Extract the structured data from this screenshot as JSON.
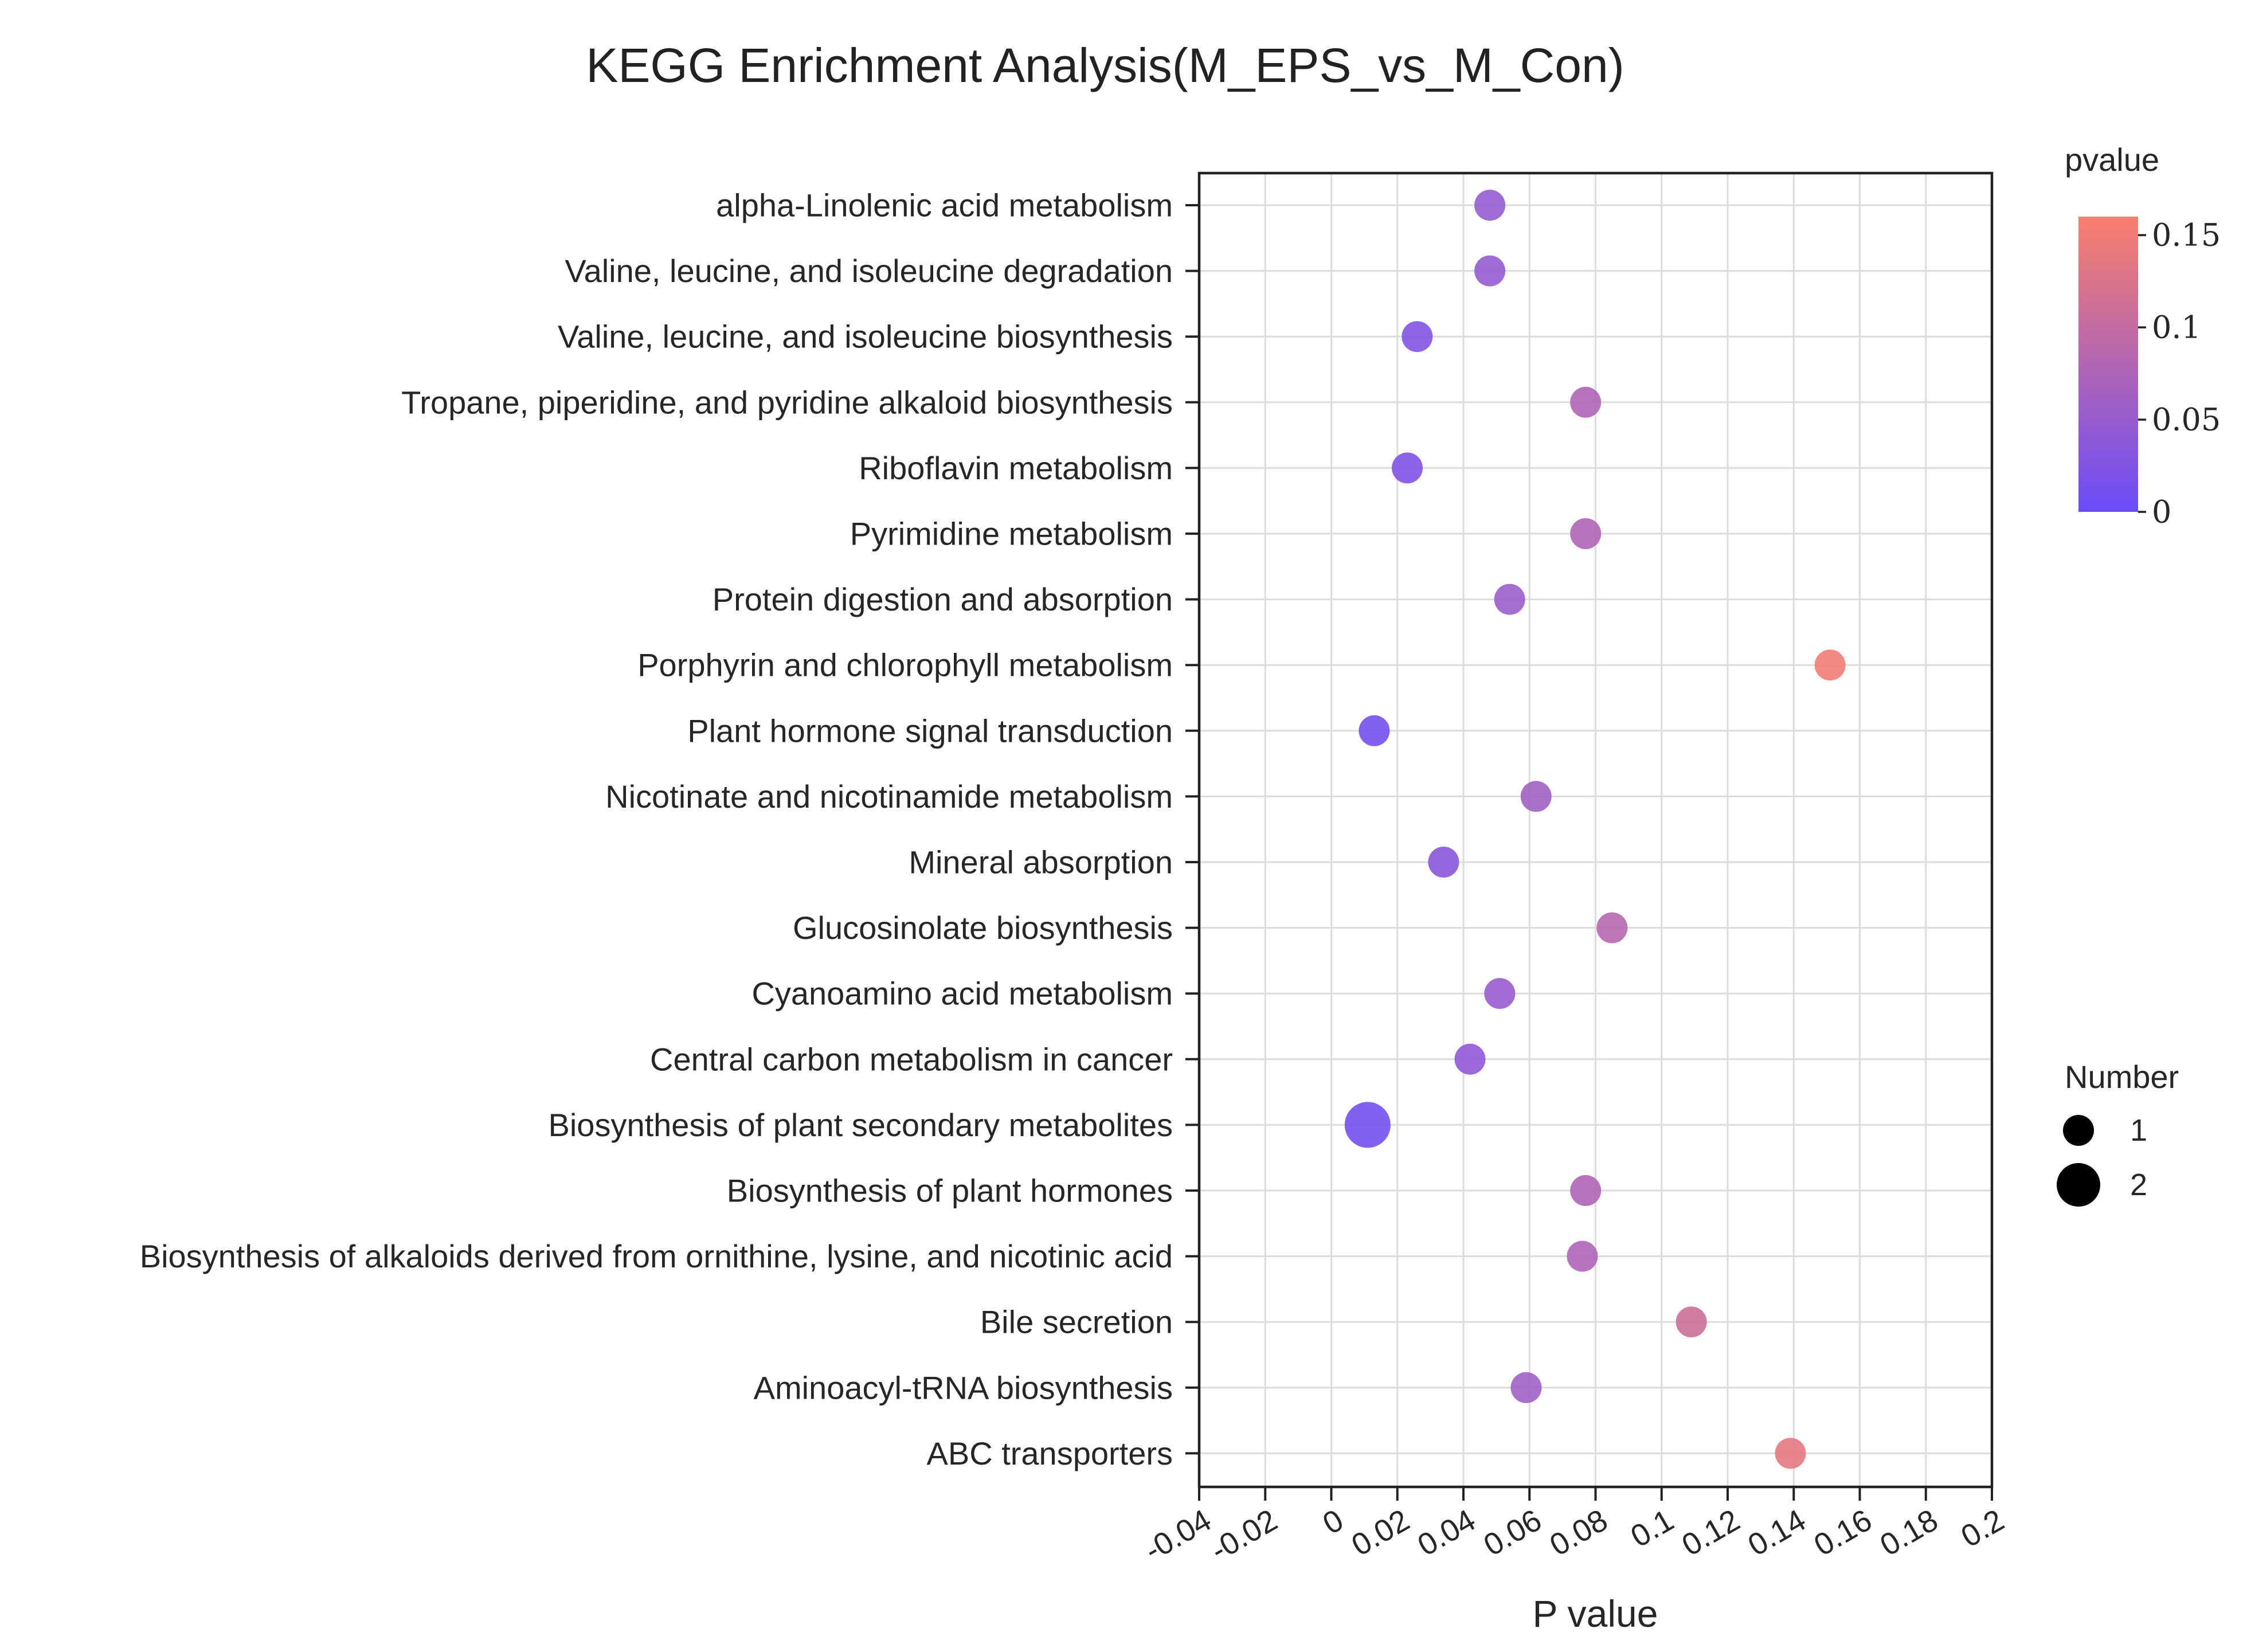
{
  "chart_data": {
    "type": "scatter",
    "title": "KEGG Enrichment Analysis(M_EPS_vs_M_Con)",
    "xlabel": "P value",
    "ylabel": "",
    "xlim": [
      -0.04,
      0.2
    ],
    "x_ticks": [
      "-0.04",
      "-0.02",
      "0",
      "0.02",
      "0.04",
      "0.06",
      "0.08",
      "0.1",
      "0.12",
      "0.14",
      "0.16",
      "0.18",
      "0.2"
    ],
    "grid": true,
    "categories": [
      "alpha-Linolenic acid metabolism",
      "Valine, leucine, and isoleucine degradation",
      "Valine, leucine, and isoleucine biosynthesis",
      "Tropane, piperidine, and pyridine alkaloid biosynthesis",
      "Riboflavin metabolism",
      "Pyrimidine metabolism",
      "Protein digestion and absorption",
      "Porphyrin and chlorophyll metabolism",
      "Plant hormone signal transduction",
      "Nicotinate and nicotinamide metabolism",
      "Mineral absorption",
      "Glucosinolate biosynthesis",
      "Cyanoamino acid metabolism",
      "Central carbon metabolism in cancer",
      "Biosynthesis of plant secondary metabolites",
      "Biosynthesis of plant hormones",
      "Biosynthesis of alkaloids derived from ornithine, lysine, and nicotinic acid",
      "Bile secretion",
      "Aminoacyl-tRNA biosynthesis",
      "ABC transporters"
    ],
    "values": [
      0.048,
      0.048,
      0.026,
      0.077,
      0.023,
      0.077,
      0.054,
      0.151,
      0.013,
      0.062,
      0.034,
      0.085,
      0.051,
      0.042,
      0.011,
      0.077,
      0.076,
      0.109,
      0.059,
      0.139
    ],
    "number": [
      1,
      1,
      1,
      1,
      1,
      1,
      1,
      1,
      1,
      1,
      1,
      1,
      1,
      1,
      2,
      1,
      1,
      1,
      1,
      1
    ],
    "color_legend": {
      "title": "pvalue",
      "range": [
        0,
        0.16
      ],
      "ticks": [
        {
          "value": 0.15,
          "label": "0.15"
        },
        {
          "value": 0.1,
          "label": "0.1"
        },
        {
          "value": 0.05,
          "label": "0.05"
        },
        {
          "value": 0,
          "label": "0"
        }
      ],
      "low_color": "#6a4cfa",
      "high_color": "#f97f6c"
    },
    "size_legend": {
      "title": "Number",
      "items": [
        {
          "value": 1,
          "label": "1"
        },
        {
          "value": 2,
          "label": "2"
        }
      ]
    }
  }
}
